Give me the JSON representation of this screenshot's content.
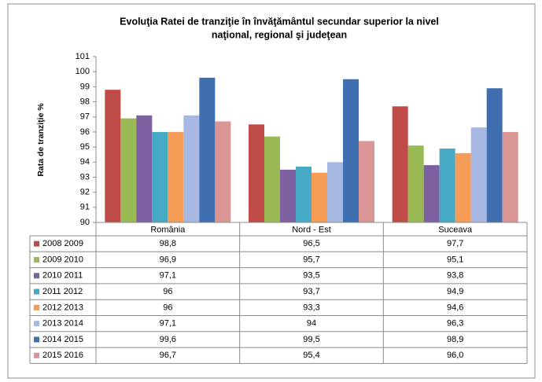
{
  "chart_data": {
    "type": "bar",
    "title": [
      "Evoluţia Ratei de tranziţie în învăţământul secundar superior la nivel",
      "naţional, regional şi judeţean"
    ],
    "y_label": "Rata de tranziţie %",
    "categories": [
      "România",
      "Nord - Est",
      "Suceava"
    ],
    "series": [
      {
        "name": "2008 2009",
        "color": "#be4b48",
        "values": [
          98.8,
          96.5,
          97.7
        ],
        "value_labels": [
          "98,8",
          "96,5",
          "97,7"
        ]
      },
      {
        "name": "2009 2010",
        "color": "#98b954",
        "values": [
          96.9,
          95.7,
          95.1
        ],
        "value_labels": [
          "96,9",
          "95,7",
          "95,1"
        ]
      },
      {
        "name": "2010 2011",
        "color": "#7d60a0",
        "values": [
          97.1,
          93.5,
          93.8
        ],
        "value_labels": [
          "97,1",
          "93,5",
          "93,8"
        ]
      },
      {
        "name": "2011 2012",
        "color": "#46aac5",
        "values": [
          96,
          93.7,
          94.9
        ],
        "value_labels": [
          "96",
          "93,7",
          "94,9"
        ]
      },
      {
        "name": "2012 2013",
        "color": "#f59d56",
        "values": [
          96,
          93.3,
          94.6
        ],
        "value_labels": [
          "96",
          "93,3",
          "94,6"
        ]
      },
      {
        "name": "2013 2014",
        "color": "#a7b9e3",
        "values": [
          97.1,
          94,
          96.3
        ],
        "value_labels": [
          "97,1",
          "94",
          "96,3"
        ]
      },
      {
        "name": "2014 2015",
        "color": "#3f6fb0",
        "values": [
          99.6,
          99.5,
          98.9
        ],
        "value_labels": [
          "99,6",
          "99,5",
          "98,9"
        ]
      },
      {
        "name": "2015 2016",
        "color": "#d99694",
        "values": [
          96.7,
          95.4,
          96.0
        ],
        "value_labels": [
          "96,7",
          "95,4",
          "96,0"
        ]
      }
    ],
    "ylim": [
      90,
      101
    ],
    "yticks": [
      90,
      91,
      92,
      93,
      94,
      95,
      96,
      97,
      98,
      99,
      100,
      101
    ],
    "grid": false
  }
}
